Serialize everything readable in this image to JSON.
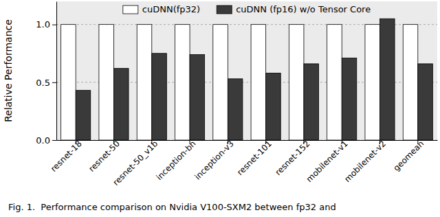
{
  "chart_data": {
    "type": "bar",
    "y_label": "Relative Performance",
    "annotations": [
      "Fig. 1.  Performance comparison on Nvidia V100-SXM2 between fp32 and"
    ],
    "categories": [
      "resnet-18",
      "resnet-50",
      "resnet-50_v1b",
      "inception-bn",
      "inception-v3",
      "resnet-101",
      "resnet-152",
      "mobilenet-v1",
      "mobilenet-v2",
      "geomean"
    ],
    "series": [
      {
        "name": "cuDNN(fp32)",
        "color": "#ffffff",
        "values": [
          1.0,
          1.0,
          1.0,
          1.0,
          1.0,
          1.0,
          1.0,
          1.0,
          1.0,
          1.0
        ]
      },
      {
        "name": "cuDNN (fp16) w/o Tensor Core",
        "color": "#3a3a3a",
        "values": [
          0.43,
          0.62,
          0.75,
          0.74,
          0.53,
          0.58,
          0.66,
          0.71,
          1.05,
          0.66
        ]
      }
    ],
    "ylim": [
      0,
      1.2
    ],
    "yticks": [
      {
        "value": 0,
        "label": "0.0"
      },
      {
        "value": 0.5,
        "label": "0.5"
      },
      {
        "value": 1.0,
        "label": "1.0"
      }
    ],
    "grid": true,
    "legend": "top"
  }
}
